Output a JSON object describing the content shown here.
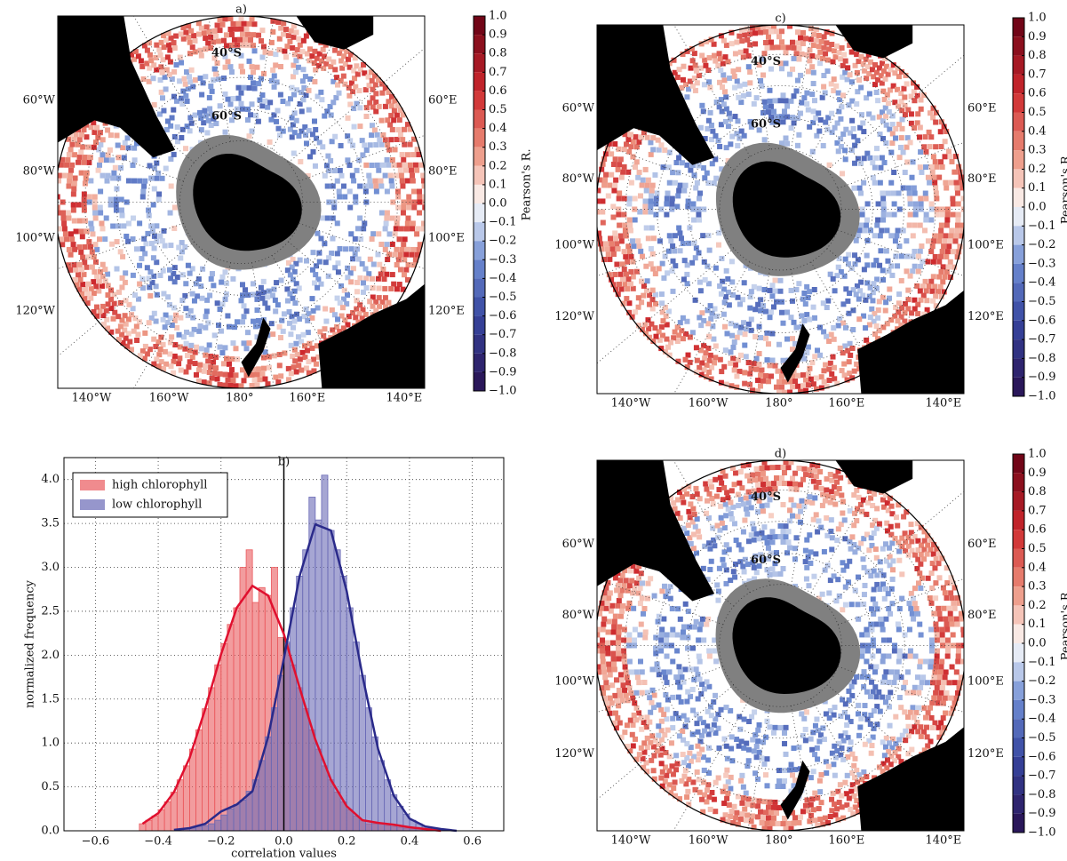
{
  "chart_data": [
    {
      "type": "map",
      "title": "a)",
      "lat_labels": [
        "40°S",
        "60°S"
      ],
      "left_labels": [
        "60°W",
        "80°W",
        "100°W",
        "120°W"
      ],
      "right_labels": [
        "60°E",
        "80°E",
        "100°E",
        "120°E"
      ],
      "bottom_labels": [
        "140°W",
        "160°W",
        "180°",
        "160°E",
        "140°E"
      ],
      "colorbar_label": "Pearson's R.",
      "clim": [
        -1.0,
        1.0
      ],
      "cticks": [
        {
          "value": 1.0,
          "label": "1.0"
        },
        0.9,
        0.8,
        0.7,
        0.6,
        0.5,
        0.4,
        0.3,
        0.2,
        0.1,
        {
          "value": 0,
          "label": "0.0"
        },
        {
          "value": -0.1,
          "label": "−0.1"
        },
        {
          "value": -0.2,
          "label": "−0.2"
        },
        {
          "value": -0.3,
          "label": "−0.3"
        },
        {
          "value": -0.4,
          "label": "−0.4"
        },
        {
          "value": -0.5,
          "label": "−0.5"
        },
        {
          "value": -0.6,
          "label": "−0.6"
        },
        {
          "value": -0.7,
          "label": "−0.7"
        },
        {
          "value": -0.8,
          "label": "−0.8"
        },
        {
          "value": -0.9,
          "label": "−0.9"
        },
        {
          "value": -1.0,
          "label": "−1.0"
        }
      ]
    },
    {
      "type": "histogram",
      "title": "b)",
      "xlabel": "correlation values",
      "ylabel": "normalized frequency",
      "xlim": [
        -0.7,
        0.7
      ],
      "ylim": [
        0,
        4.25
      ],
      "grid": true,
      "legend": "upper left",
      "xticks": [
        {
          "value": -0.6,
          "label": "−0.6"
        },
        {
          "value": -0.4,
          "label": "−0.4"
        },
        {
          "value": -0.2,
          "label": "−0.2"
        },
        {
          "value": 0,
          "label": "0.0"
        },
        0.2,
        0.4,
        0.6
      ],
      "yticks": [
        {
          "value": 0,
          "label": "0.0"
        },
        0.5,
        {
          "value": 1,
          "label": "1.0"
        },
        1.5,
        {
          "value": 2,
          "label": "2.0"
        },
        2.5,
        {
          "value": 3,
          "label": "3.0"
        },
        3.5,
        {
          "value": 4,
          "label": "4.0"
        }
      ],
      "series": [
        {
          "name": "high chlorophyll",
          "color": "#ea5a5e",
          "bins": [
            -0.46,
            -0.44,
            -0.42,
            -0.4,
            -0.38,
            -0.36,
            -0.34,
            -0.32,
            -0.3,
            -0.28,
            -0.26,
            -0.24,
            -0.22,
            -0.2,
            -0.18,
            -0.16,
            -0.14,
            -0.12,
            -0.1,
            -0.08,
            -0.06,
            -0.04,
            -0.02,
            0,
            0.02,
            0.04,
            0.06,
            0.08,
            0.1,
            0.12,
            0.14,
            0.16,
            0.18,
            0.2,
            0.22,
            0.24,
            0.26,
            0.28,
            0.3,
            0.32,
            0.34,
            0.36,
            0.38,
            0.4,
            0.42,
            0.44,
            0.46,
            0.48
          ],
          "values": [
            0.08,
            0.12,
            0.17,
            0.24,
            0.33,
            0.44,
            0.58,
            0.74,
            0.93,
            1.15,
            1.39,
            1.63,
            1.89,
            2.13,
            2.35,
            2.54,
            3.0,
            3.2,
            2.6,
            2.77,
            2.68,
            3.0,
            2.2,
            2.13,
            1.89,
            1.63,
            1.39,
            1.15,
            0.93,
            0.74,
            0.58,
            0.44,
            0.33,
            0.24,
            0.17,
            0.12,
            0.08,
            0.08,
            0.08,
            0.06,
            0.05,
            0.04,
            0.03,
            0.02,
            0.02,
            0.01,
            0.01
          ]
        },
        {
          "name": "low chlorophyll",
          "color": "#6a6ab6",
          "bins": [
            -0.34,
            -0.32,
            -0.3,
            -0.28,
            -0.26,
            -0.24,
            -0.22,
            -0.2,
            -0.18,
            -0.16,
            -0.14,
            -0.12,
            -0.1,
            -0.08,
            -0.06,
            -0.04,
            -0.02,
            0,
            0.02,
            0.04,
            0.06,
            0.08,
            0.1,
            0.12,
            0.14,
            0.16,
            0.18,
            0.2,
            0.22,
            0.24,
            0.26,
            0.28,
            0.3,
            0.32,
            0.34,
            0.36,
            0.38,
            0.4,
            0.42,
            0.44,
            0.46,
            0.48,
            0.5,
            0.52,
            0.54
          ],
          "values": [
            0.02,
            0.02,
            0.03,
            0.05,
            0.06,
            0.08,
            0.12,
            0.18,
            0.25,
            0.3,
            0.35,
            0.45,
            0.58,
            0.8,
            1.07,
            1.4,
            1.77,
            2.15,
            2.54,
            2.9,
            3.2,
            3.8,
            3.54,
            4.05,
            3.42,
            3.2,
            2.9,
            2.54,
            2.15,
            1.77,
            1.4,
            1.07,
            0.8,
            0.58,
            0.41,
            0.28,
            0.19,
            0.12,
            0.08,
            0.05,
            0.03,
            0.02,
            0.01,
            0.01
          ]
        }
      ],
      "curves": [
        {
          "color": "#e0102f",
          "x": [
            -0.45,
            -0.4,
            -0.35,
            -0.3,
            -0.25,
            -0.2,
            -0.15,
            -0.1,
            -0.05,
            0,
            0.05,
            0.1,
            0.15,
            0.2,
            0.25,
            0.3,
            0.35,
            0.4,
            0.45,
            0.5
          ],
          "values": [
            0.08,
            0.2,
            0.44,
            0.83,
            1.39,
            2.01,
            2.54,
            2.79,
            2.68,
            2.24,
            1.63,
            1.04,
            0.58,
            0.28,
            0.12,
            0.09,
            0.07,
            0.04,
            0.02,
            0.0
          ]
        },
        {
          "color": "#2a2a8a",
          "x": [
            -0.35,
            -0.3,
            -0.25,
            -0.2,
            -0.15,
            -0.1,
            -0.05,
            0,
            0.05,
            0.1,
            0.15,
            0.2,
            0.25,
            0.3,
            0.35,
            0.4,
            0.45,
            0.5,
            0.55
          ],
          "values": [
            0.01,
            0.03,
            0.08,
            0.22,
            0.3,
            0.45,
            1.07,
            1.96,
            2.9,
            3.49,
            3.42,
            2.73,
            1.77,
            0.93,
            0.4,
            0.14,
            0.05,
            0.02,
            0.0
          ]
        }
      ]
    },
    {
      "type": "map",
      "title": "c)",
      "lat_labels": [
        "40°S",
        "60°S"
      ],
      "left_labels": [
        "60°W",
        "80°W",
        "100°W",
        "120°W"
      ],
      "right_labels": [
        "60°E",
        "80°E",
        "100°E",
        "120°E"
      ],
      "bottom_labels": [
        "140°W",
        "160°W",
        "180°",
        "160°E",
        "140°E"
      ],
      "colorbar_label": "Pearson's R.",
      "clim": [
        -1.0,
        1.0
      ],
      "cticks": [
        {
          "value": 1.0,
          "label": "1.0"
        },
        0.9,
        0.8,
        0.7,
        0.6,
        0.5,
        0.4,
        0.3,
        0.2,
        0.1,
        {
          "value": 0,
          "label": "0.0"
        },
        {
          "value": -0.1,
          "label": "−0.1"
        },
        {
          "value": -0.2,
          "label": "−0.2"
        },
        {
          "value": -0.3,
          "label": "−0.3"
        },
        {
          "value": -0.4,
          "label": "−0.4"
        },
        {
          "value": -0.5,
          "label": "−0.5"
        },
        {
          "value": -0.6,
          "label": "−0.6"
        },
        {
          "value": -0.7,
          "label": "−0.7"
        },
        {
          "value": -0.8,
          "label": "−0.8"
        },
        {
          "value": -0.9,
          "label": "−0.9"
        },
        {
          "value": -1.0,
          "label": "−1.0"
        }
      ]
    },
    {
      "type": "map",
      "title": "d)",
      "lat_labels": [
        "40°S",
        "60°S"
      ],
      "left_labels": [
        "60°W",
        "80°W",
        "100°W",
        "120°W"
      ],
      "right_labels": [
        "60°E",
        "80°E",
        "100°E",
        "120°E"
      ],
      "bottom_labels": [
        "140°W",
        "160°W",
        "180°",
        "160°E",
        "140°E"
      ],
      "colorbar_label": "Pearson's R.",
      "clim": [
        -1.0,
        1.0
      ],
      "cticks": [
        {
          "value": 1.0,
          "label": "1.0"
        },
        0.9,
        0.8,
        0.7,
        0.6,
        0.5,
        0.4,
        0.3,
        0.2,
        0.1,
        {
          "value": 0,
          "label": "0.0"
        },
        {
          "value": -0.1,
          "label": "−0.1"
        },
        {
          "value": -0.2,
          "label": "−0.2"
        },
        {
          "value": -0.3,
          "label": "−0.3"
        },
        {
          "value": -0.4,
          "label": "−0.4"
        },
        {
          "value": -0.5,
          "label": "−0.5"
        },
        {
          "value": -0.6,
          "label": "−0.6"
        },
        {
          "value": -0.7,
          "label": "−0.7"
        },
        {
          "value": -0.8,
          "label": "−0.8"
        },
        {
          "value": -0.9,
          "label": "−0.9"
        },
        {
          "value": -1.0,
          "label": "−1.0"
        }
      ]
    }
  ]
}
